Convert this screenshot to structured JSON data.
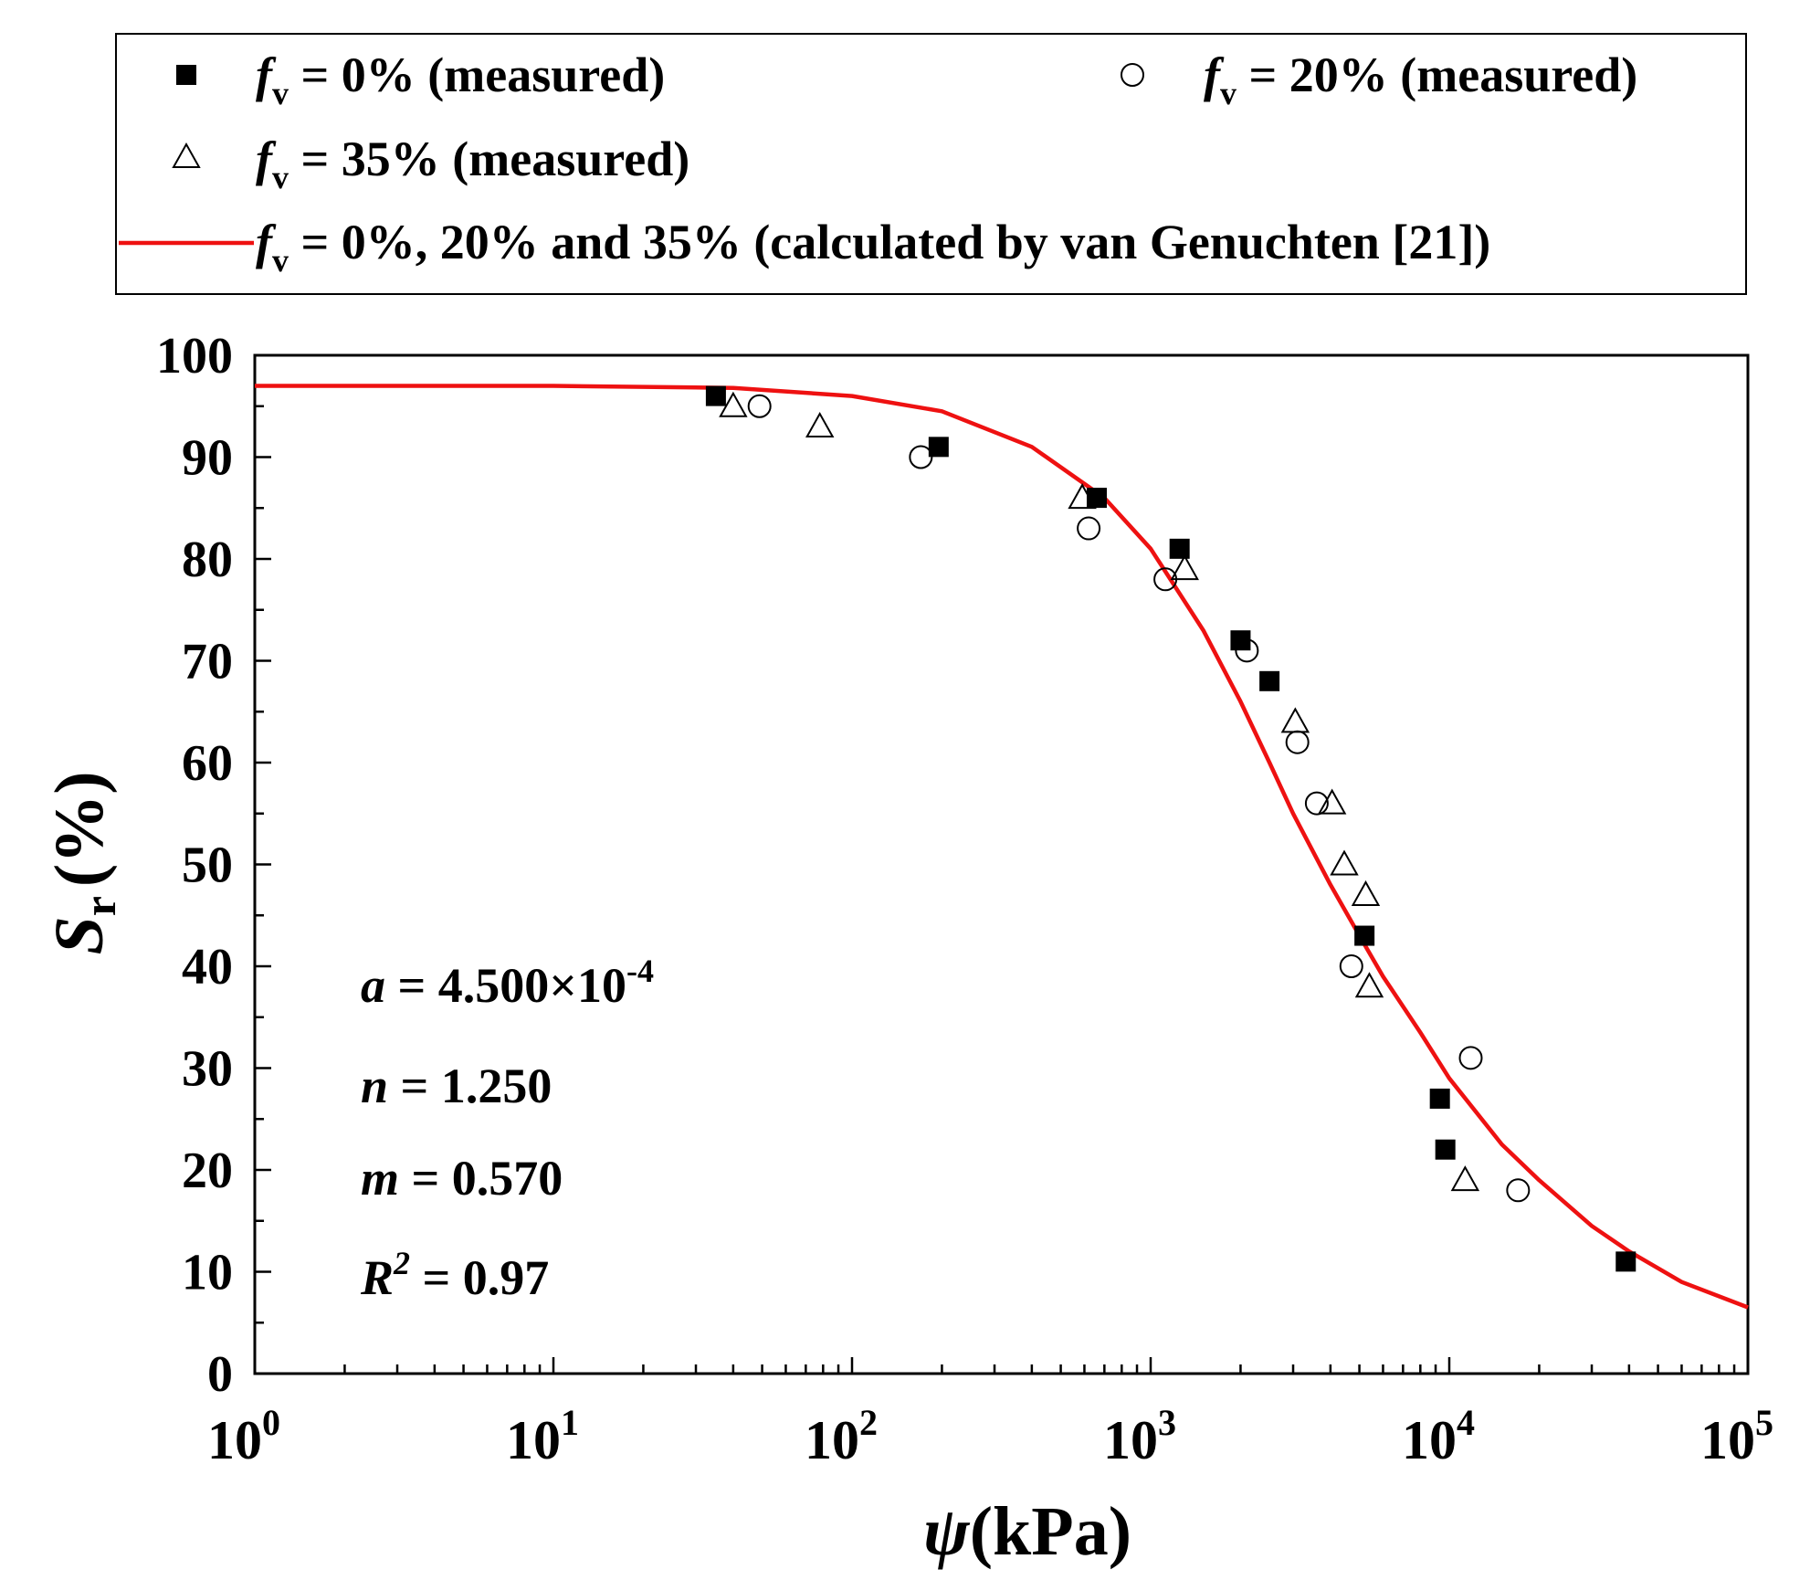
{
  "chart_data": {
    "type": "scatter",
    "title": "",
    "xlabel": "ψ (kPa)",
    "xlabel_symbol": "ψ",
    "xlabel_unit": "(kPa)",
    "ylabel": "Sr (%)",
    "ylabel_symbol": "S",
    "ylabel_subscript": "r",
    "ylabel_unit": "(%)",
    "xscale": "log",
    "xlim": [
      1,
      100000
    ],
    "ylim": [
      0,
      100
    ],
    "x_ticks": [
      {
        "base": "10",
        "exp": "0"
      },
      {
        "base": "10",
        "exp": "1"
      },
      {
        "base": "10",
        "exp": "2"
      },
      {
        "base": "10",
        "exp": "3"
      },
      {
        "base": "10",
        "exp": "4"
      },
      {
        "base": "10",
        "exp": "5"
      }
    ],
    "y_ticks": [
      "0",
      "10",
      "20",
      "30",
      "40",
      "50",
      "60",
      "70",
      "80",
      "90",
      "100"
    ],
    "grid": false,
    "legend_position": "top",
    "series": [
      {
        "name": "fv = 0% (measured)",
        "label_symbol": "f",
        "label_sub": "v",
        "label_rest": " = 0% (measured)",
        "marker": "filled-square",
        "color": "#000000",
        "points": [
          [
            35,
            96
          ],
          [
            195,
            91
          ],
          [
            660,
            86
          ],
          [
            1250,
            81
          ],
          [
            2000,
            72
          ],
          [
            2500,
            68
          ],
          [
            5200,
            43
          ],
          [
            9300,
            27
          ],
          [
            9700,
            22
          ],
          [
            39000,
            11
          ]
        ]
      },
      {
        "name": "fv = 20% (measured)",
        "label_symbol": "f",
        "label_sub": "v",
        "label_rest": " = 20% (measured)",
        "marker": "open-circle",
        "color": "#000000",
        "points": [
          [
            49,
            95
          ],
          [
            170,
            90
          ],
          [
            620,
            83
          ],
          [
            1120,
            78
          ],
          [
            2100,
            71
          ],
          [
            3100,
            62
          ],
          [
            3600,
            56
          ],
          [
            4700,
            40
          ],
          [
            11800,
            31
          ],
          [
            17000,
            18
          ]
        ]
      },
      {
        "name": "fv = 35% (measured)",
        "label_symbol": "f",
        "label_sub": "v",
        "label_rest": " = 35% (measured)",
        "marker": "open-triangle",
        "color": "#000000",
        "points": [
          [
            40,
            95
          ],
          [
            78,
            93
          ],
          [
            590,
            86
          ],
          [
            1300,
            79
          ],
          [
            3050,
            64
          ],
          [
            4050,
            56
          ],
          [
            4450,
            50
          ],
          [
            5250,
            47
          ],
          [
            5400,
            38
          ],
          [
            11300,
            19
          ]
        ]
      },
      {
        "name": "fv = 0%, 20% and 35% (calculated by van Genuchten [21])",
        "label_symbol": "f",
        "label_sub": "v",
        "label_rest": " = 0%, 20% and 35% (calculated by van Genuchten [21])",
        "marker": "line",
        "color": "#ee1111",
        "curve": [
          [
            1,
            97
          ],
          [
            10,
            97
          ],
          [
            40,
            96.8
          ],
          [
            100,
            96
          ],
          [
            200,
            94.5
          ],
          [
            400,
            91
          ],
          [
            700,
            86
          ],
          [
            1000,
            81
          ],
          [
            1500,
            73
          ],
          [
            2000,
            66
          ],
          [
            2500,
            60
          ],
          [
            3000,
            55
          ],
          [
            4000,
            48
          ],
          [
            5000,
            43
          ],
          [
            6000,
            39
          ],
          [
            8000,
            33.5
          ],
          [
            10000,
            29
          ],
          [
            15000,
            22.5
          ],
          [
            20000,
            19
          ],
          [
            30000,
            14.5
          ],
          [
            40000,
            12
          ],
          [
            60000,
            9
          ],
          [
            100000,
            6.5
          ]
        ]
      }
    ],
    "annotations": [
      {
        "sym": "a",
        "sup": "",
        "text": " = 4.500×10",
        "exp": "-4"
      },
      {
        "sym": "n",
        "sup": "",
        "text": " = 1.250",
        "exp": ""
      },
      {
        "sym": "m",
        "sup": "",
        "text": " = 0.570",
        "exp": ""
      },
      {
        "sym": "R",
        "sup": "2",
        "text": " = 0.97",
        "exp": ""
      }
    ]
  }
}
